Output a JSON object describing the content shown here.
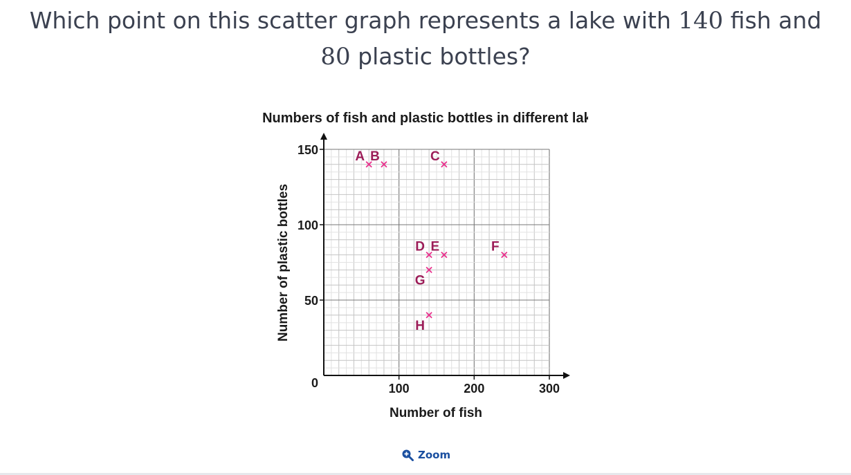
{
  "question": {
    "before": "Which point on this scatter graph represents a lake with ",
    "num1": "140",
    "middle": " fish and ",
    "num2": "80",
    "after": " plastic bottles?"
  },
  "zoom_label": "Zoom",
  "colors": {
    "point": "#e8308c",
    "label": "#9c1d58",
    "zoom": "#1a4fa0"
  },
  "icons": {
    "zoom": "zoom-in-magnifier-icon"
  },
  "chart_data": {
    "type": "scatter",
    "title": "Numbers of fish and plastic bottles in different lakes",
    "xlabel": "Number of fish",
    "ylabel": "Number of plastic bottles",
    "xlim": [
      0,
      300
    ],
    "ylim": [
      0,
      150
    ],
    "origin_label": "0",
    "x_ticks": [
      100,
      200,
      300
    ],
    "y_ticks": [
      50,
      100,
      150
    ],
    "grid": true,
    "x_minor_step": 20,
    "y_minor_step": 10,
    "points": [
      {
        "label": "A",
        "x": 60,
        "y": 140
      },
      {
        "label": "B",
        "x": 80,
        "y": 140
      },
      {
        "label": "C",
        "x": 160,
        "y": 140
      },
      {
        "label": "D",
        "x": 140,
        "y": 80
      },
      {
        "label": "E",
        "x": 160,
        "y": 80
      },
      {
        "label": "F",
        "x": 240,
        "y": 80
      },
      {
        "label": "G",
        "x": 140,
        "y": 70
      },
      {
        "label": "H",
        "x": 140,
        "y": 40
      }
    ]
  }
}
